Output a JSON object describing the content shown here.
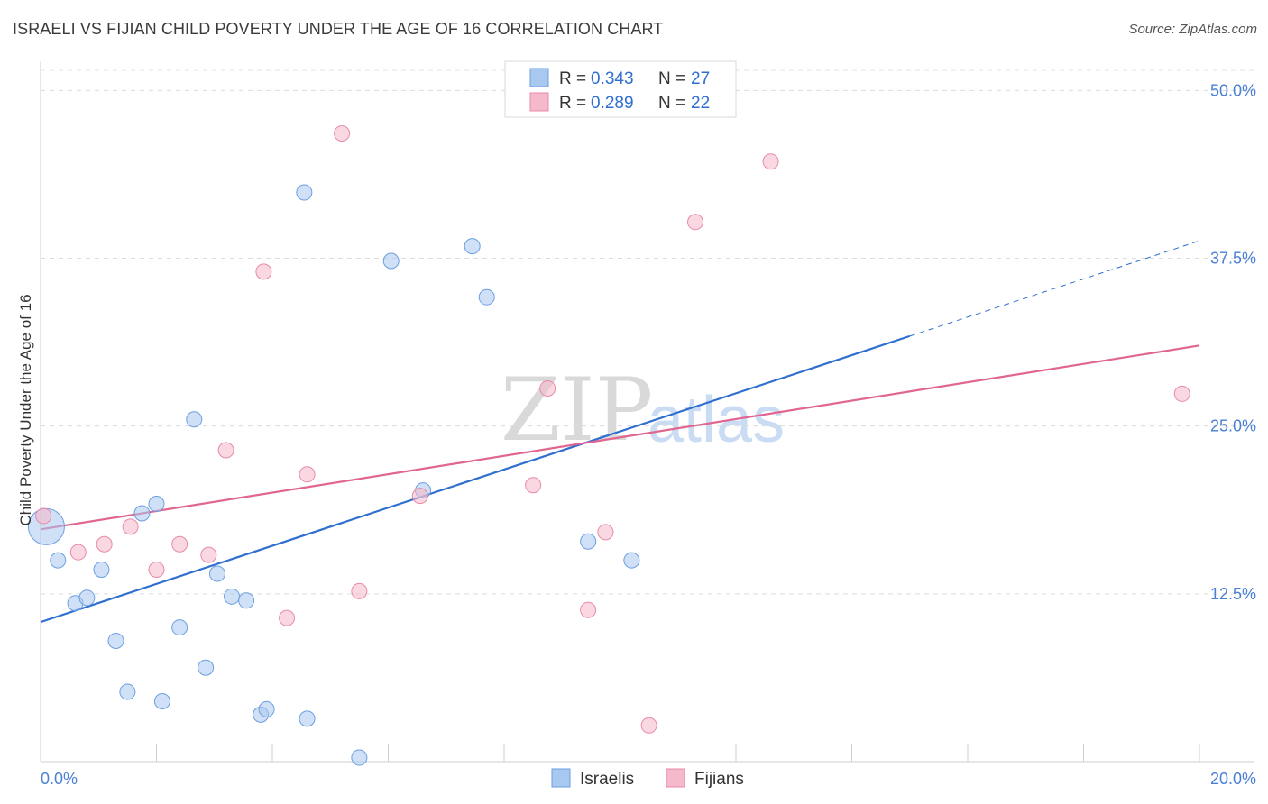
{
  "title": "ISRAELI VS FIJIAN CHILD POVERTY UNDER THE AGE OF 16 CORRELATION CHART",
  "source": "Source: ZipAtlas.com",
  "watermark": {
    "zip": "ZIP",
    "atlas": "atlas"
  },
  "legend": {
    "rows": [
      {
        "r_label": "R = ",
        "r_value": "0.343",
        "n_label": "N = ",
        "n_value": "27",
        "color": "#a9c8f0"
      },
      {
        "r_label": "R = ",
        "r_value": "0.289",
        "n_label": "N = ",
        "n_value": "22",
        "color": "#f6b8cb"
      }
    ]
  },
  "bottom_legend": [
    {
      "label": "Israelis",
      "color": "#a9c8f0"
    },
    {
      "label": "Fijians",
      "color": "#f6b8cb"
    }
  ],
  "chart_data": {
    "type": "scatter",
    "title": "ISRAELI VS FIJIAN CHILD POVERTY UNDER THE AGE OF 16 CORRELATION CHART",
    "xlabel": "",
    "ylabel": "Child Poverty Under the Age of 16",
    "xlim": [
      0,
      20
    ],
    "ylim": [
      0,
      51.5
    ],
    "x_tick_labels": [
      {
        "value": 0,
        "label": "0.0%"
      },
      {
        "value": 20,
        "label": "20.0%"
      }
    ],
    "y_tick_labels": [
      {
        "value": 12.5,
        "label": "12.5%"
      },
      {
        "value": 25,
        "label": "25.0%"
      },
      {
        "value": 37.5,
        "label": "37.5%"
      },
      {
        "value": 50,
        "label": "50.0%"
      }
    ],
    "series": [
      {
        "name": "Israelis",
        "color": "#a9c8f0",
        "stroke": "#6c9fe0",
        "points": [
          [
            0.1,
            17.5,
            "large"
          ],
          [
            0.3,
            15.0
          ],
          [
            0.6,
            11.8
          ],
          [
            0.8,
            12.2
          ],
          [
            1.05,
            14.3
          ],
          [
            1.3,
            9.0
          ],
          [
            1.5,
            5.2
          ],
          [
            1.75,
            18.5
          ],
          [
            2.0,
            19.2
          ],
          [
            2.1,
            4.5
          ],
          [
            2.4,
            10.0
          ],
          [
            2.65,
            25.5
          ],
          [
            2.85,
            7.0
          ],
          [
            3.05,
            14.0
          ],
          [
            3.3,
            12.3
          ],
          [
            3.55,
            12.0
          ],
          [
            3.8,
            3.5
          ],
          [
            3.9,
            3.9
          ],
          [
            4.55,
            42.4
          ],
          [
            4.6,
            3.2
          ],
          [
            5.5,
            0.3
          ],
          [
            6.05,
            37.3
          ],
          [
            6.6,
            20.2
          ],
          [
            7.45,
            38.4
          ],
          [
            7.7,
            34.6
          ],
          [
            9.45,
            16.4
          ],
          [
            10.2,
            15.0
          ]
        ]
      },
      {
        "name": "Fijians",
        "color": "#f6b8cb",
        "stroke": "#e98aa9",
        "points": [
          [
            0.05,
            18.3
          ],
          [
            0.65,
            15.6
          ],
          [
            1.1,
            16.2
          ],
          [
            1.55,
            17.5
          ],
          [
            2.0,
            14.3
          ],
          [
            2.4,
            16.2
          ],
          [
            2.9,
            15.4
          ],
          [
            3.2,
            23.2
          ],
          [
            3.85,
            36.5
          ],
          [
            4.25,
            10.7
          ],
          [
            4.6,
            21.4
          ],
          [
            5.2,
            46.8
          ],
          [
            5.5,
            12.7
          ],
          [
            6.55,
            19.8
          ],
          [
            8.5,
            20.6
          ],
          [
            8.75,
            27.8
          ],
          [
            9.45,
            11.3
          ],
          [
            9.75,
            17.1
          ],
          [
            10.5,
            2.7
          ],
          [
            11.3,
            40.2
          ],
          [
            12.6,
            44.7
          ],
          [
            19.7,
            27.4
          ]
        ]
      }
    ],
    "trend_lines": [
      {
        "series": "Israelis",
        "color": "#2f6fcf",
        "x_start": 0,
        "y_start": 10.4,
        "x_solid_end": 15.0,
        "x_end": 20.0,
        "y_end": 38.8
      },
      {
        "series": "Fijians",
        "color": "#e06690",
        "x_start": 0,
        "y_start": 17.3,
        "x_end": 20.0,
        "y_end": 31.0
      }
    ],
    "grid": true
  }
}
